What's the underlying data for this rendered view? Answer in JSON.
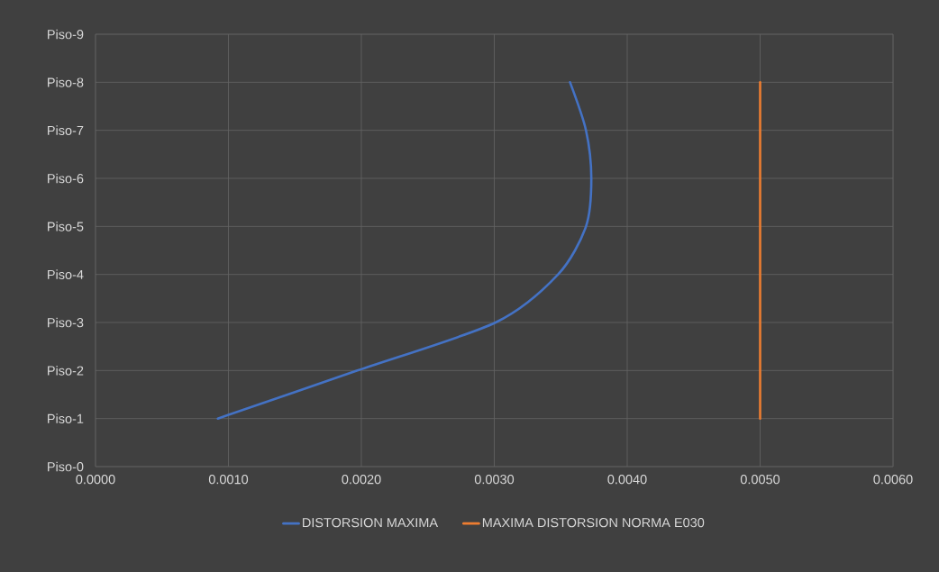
{
  "chart_data": {
    "type": "line",
    "orientation": "horizontal",
    "categories": [
      "Piso-9",
      "Piso-8",
      "Piso-7",
      "Piso-6",
      "Piso-5",
      "Piso-4",
      "Piso-3",
      "Piso-2",
      "Piso-1",
      "Piso-0"
    ],
    "series": [
      {
        "name": "DISTORSION MAXIMA",
        "color": "#4472c4",
        "values": [
          null,
          0.00357,
          0.00369,
          0.00373,
          0.00369,
          0.00348,
          0.00301,
          0.00197,
          0.00092,
          null
        ]
      },
      {
        "name": "MAXIMA DISTORSION NORMA E030",
        "color": "#ed7d31",
        "values": [
          null,
          0.005,
          0.005,
          0.005,
          0.005,
          0.005,
          0.005,
          0.005,
          0.005,
          null
        ]
      }
    ],
    "xlim": [
      0,
      0.006
    ],
    "xticks": [
      {
        "value": 0,
        "label": "0.0000"
      },
      {
        "value": 0.001,
        "label": "0.0010"
      },
      {
        "value": 0.002,
        "label": "0.0020"
      },
      {
        "value": 0.003,
        "label": "0.0030"
      },
      {
        "value": 0.004,
        "label": "0.0040"
      },
      {
        "value": 0.005,
        "label": "0.0050"
      },
      {
        "value": 0.006,
        "label": "0.0060"
      }
    ],
    "grid": true,
    "legend": "bottom",
    "marker": "none",
    "line_style": "solid"
  }
}
